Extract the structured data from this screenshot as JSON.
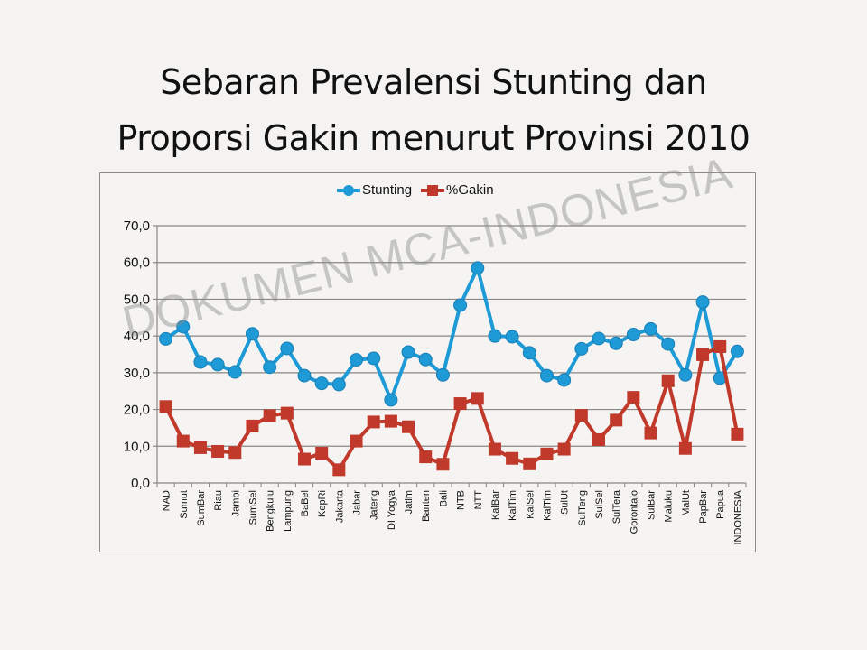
{
  "slide": {
    "title_line1": "Sebaran Prevalensi Stunting dan",
    "title_line2": "Proporsi  Gakin menurut Provinsi 2010"
  },
  "watermark": "DOKUMEN MCA-INDONESIA",
  "legend": [
    {
      "name": "Stunting",
      "color": "#1e9ad6",
      "marker": "circle"
    },
    {
      "name": "%Gakin",
      "color": "#c0392b",
      "marker": "square"
    }
  ],
  "chart_data": {
    "type": "line",
    "title": "Sebaran Prevalensi Stunting dan Proporsi Gakin menurut Provinsi 2010",
    "xlabel": "",
    "ylabel": "",
    "ylim": [
      0,
      70
    ],
    "yticks": [
      "0,0",
      "10,0",
      "20,0",
      "30,0",
      "40,0",
      "50,0",
      "60,0",
      "70,0"
    ],
    "grid": true,
    "legend_position": "top",
    "categories": [
      "NAD",
      "Sumut",
      "SumBar",
      "Riau",
      "Jambi",
      "SumSel",
      "Bengkulu",
      "Lampung",
      "BaBel",
      "KepRi",
      "Jakarta",
      "Jabar",
      "Jateng",
      "DI Yogya",
      "Jatim",
      "Banten",
      "Bali",
      "NTB",
      "NTT",
      "KalBar",
      "KalTim",
      "KalSel",
      "KalTim",
      "SulUt",
      "SulTeng",
      "SulSel",
      "SulTera",
      "Gorontalo",
      "SulBar",
      "Maluku",
      "MalUt",
      "PapBar",
      "Papua",
      "INDONESIA"
    ],
    "series": [
      {
        "name": "Stunting",
        "color": "#1e9ad6",
        "marker": "circle",
        "values": [
          39.2,
          42.5,
          32.9,
          32.2,
          30.2,
          40.6,
          31.5,
          36.6,
          29.2,
          27.1,
          26.8,
          33.5,
          33.9,
          22.6,
          35.6,
          33.6,
          29.4,
          48.4,
          58.5,
          40.0,
          39.8,
          35.4,
          29.2,
          28.0,
          36.5,
          39.3,
          38.0,
          40.4,
          41.9,
          37.8,
          29.4,
          49.2,
          28.5,
          35.8
        ]
      },
      {
        "name": "%Gakin",
        "color": "#c0392b",
        "marker": "square",
        "values": [
          20.8,
          11.4,
          9.6,
          8.6,
          8.3,
          15.5,
          18.3,
          19.0,
          6.5,
          8.1,
          3.6,
          11.4,
          16.6,
          16.8,
          15.3,
          7.1,
          5.1,
          21.6,
          23.0,
          9.2,
          6.7,
          5.2,
          7.9,
          9.2,
          18.4,
          11.8,
          17.1,
          23.3,
          13.6,
          27.8,
          9.4,
          34.9,
          37.1,
          13.3
        ]
      }
    ]
  }
}
